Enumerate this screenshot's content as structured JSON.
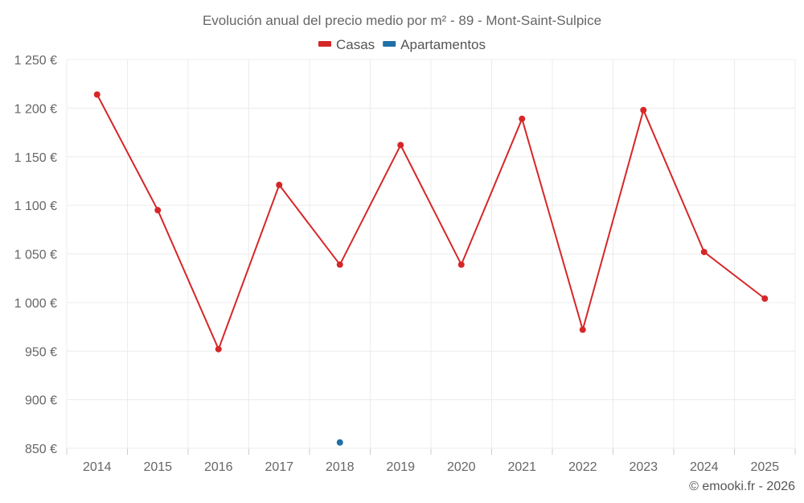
{
  "chart_data": {
    "type": "line",
    "title": "Evolución anual del precio medio por m² - 89 - Mont-Saint-Sulpice",
    "categories": [
      "2014",
      "2015",
      "2016",
      "2017",
      "2018",
      "2019",
      "2020",
      "2021",
      "2022",
      "2023",
      "2024",
      "2025"
    ],
    "series": [
      {
        "name": "Casas",
        "color": "#d62728",
        "values": [
          1214,
          1095,
          952,
          1121,
          1039,
          1162,
          1039,
          1189,
          972,
          1198,
          1052,
          1004
        ]
      },
      {
        "name": "Apartamentos",
        "color": "#1f6fa8",
        "values": [
          null,
          null,
          null,
          null,
          856,
          null,
          null,
          null,
          null,
          null,
          null,
          null
        ]
      }
    ],
    "ylim": [
      850,
      1250
    ],
    "yticks": [
      850,
      900,
      950,
      1000,
      1050,
      1100,
      1150,
      1200,
      1250
    ],
    "ytick_labels": [
      "850 €",
      "900 €",
      "950 €",
      "1 000 €",
      "1 050 €",
      "1 100 €",
      "1 150 €",
      "1 200 €",
      "1 250 €"
    ],
    "grid": true,
    "legend": "top-center"
  },
  "credit": "© emooki.fr - 2026"
}
